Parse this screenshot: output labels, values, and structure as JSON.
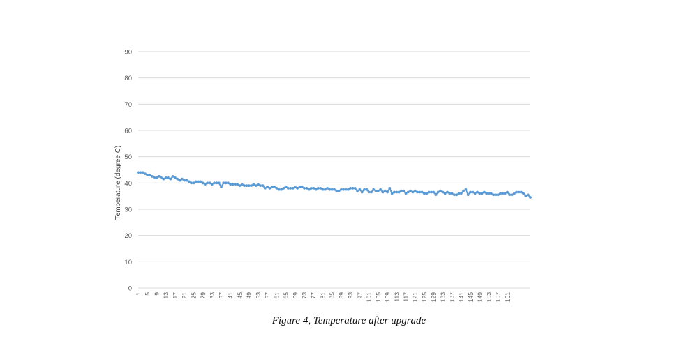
{
  "caption": "Figure 4, Temperature after upgrade",
  "chart_data": {
    "type": "line",
    "title": "",
    "xlabel": "",
    "ylabel": "Temperature (degree C)",
    "ylim": [
      0,
      90
    ],
    "yticks": [
      0,
      10,
      20,
      30,
      40,
      50,
      60,
      70,
      80,
      90
    ],
    "xticks": [
      1,
      5,
      9,
      13,
      17,
      21,
      25,
      29,
      33,
      37,
      41,
      45,
      49,
      53,
      57,
      61,
      65,
      69,
      73,
      77,
      81,
      85,
      89,
      93,
      97,
      101,
      105,
      109,
      113,
      117,
      121,
      125,
      129,
      133,
      137,
      141,
      145,
      149,
      153,
      157,
      161
    ],
    "grid": "horizontal",
    "legend": "none",
    "series_color": "#5b9bd5",
    "x_start": 1,
    "values": [
      44.0,
      44.0,
      44.0,
      43.5,
      43.0,
      43.0,
      42.5,
      42.0,
      42.0,
      42.5,
      42.0,
      41.5,
      42.0,
      42.0,
      41.5,
      42.5,
      42.0,
      41.5,
      41.0,
      41.5,
      41.0,
      41.0,
      40.5,
      40.0,
      40.0,
      40.5,
      40.5,
      40.5,
      40.0,
      39.5,
      40.0,
      40.0,
      39.5,
      40.0,
      40.0,
      40.0,
      38.5,
      40.0,
      40.0,
      40.0,
      39.5,
      39.5,
      39.5,
      39.5,
      39.0,
      39.5,
      39.0,
      39.0,
      39.0,
      39.0,
      39.5,
      39.0,
      39.5,
      39.0,
      39.0,
      38.0,
      38.5,
      38.0,
      38.5,
      38.5,
      38.0,
      37.5,
      37.5,
      38.0,
      38.5,
      38.0,
      38.0,
      38.0,
      38.5,
      38.0,
      38.5,
      38.5,
      38.0,
      38.0,
      37.5,
      38.0,
      38.0,
      37.5,
      38.0,
      38.0,
      37.5,
      37.5,
      38.0,
      37.5,
      37.5,
      37.5,
      37.0,
      37.0,
      37.5,
      37.5,
      37.5,
      37.5,
      38.0,
      38.0,
      38.0,
      37.0,
      37.5,
      36.5,
      37.5,
      37.5,
      36.5,
      36.5,
      37.5,
      37.0,
      37.0,
      37.5,
      36.5,
      37.0,
      36.5,
      38.0,
      36.0,
      36.5,
      36.5,
      36.5,
      37.0,
      37.0,
      36.0,
      36.5,
      37.0,
      36.5,
      37.0,
      36.5,
      36.5,
      36.5,
      36.0,
      36.0,
      36.5,
      36.5,
      36.5,
      35.5,
      36.5,
      37.0,
      36.5,
      36.0,
      36.5,
      36.0,
      36.0,
      35.5,
      35.5,
      36.0,
      36.0,
      37.0,
      37.5,
      35.5,
      36.5,
      36.5,
      36.0,
      36.5,
      36.0,
      36.0,
      36.5,
      36.0,
      36.0,
      36.0,
      35.5,
      35.5,
      35.5,
      36.0,
      36.0,
      36.0,
      36.5,
      35.5,
      35.5,
      36.0,
      36.5,
      36.5,
      36.5,
      36.0,
      35.0,
      35.5,
      34.5
    ]
  }
}
